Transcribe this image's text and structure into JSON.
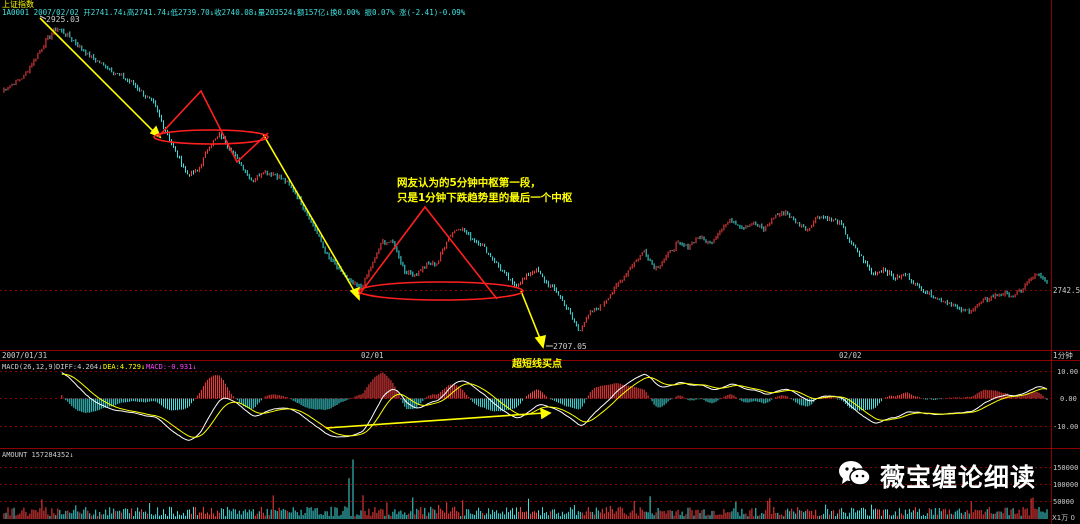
{
  "header": {
    "index_name": "上证指数",
    "info_line": "1A0001 2007/02/02 开2741.74↓高2741.74↓低2739.70↓收2740.08↓量203524↓额157亿↓换0.00% 振0.07% 涨(-2.41)-0.09%"
  },
  "price_panel": {
    "high_label": "2925.03",
    "low_label": "2707.05",
    "ref_label": "2742.5",
    "annotation_line1": "网友认为的5分钟中枢第一段，",
    "annotation_line2": "只是1分钟下跌趋势里的最后一个中枢",
    "dates": [
      "2007/01/31",
      "02/01",
      "02/02"
    ],
    "period": "1分钟"
  },
  "macd_panel": {
    "title": "超短线买点",
    "legend_params": "MACD(26,12,9)",
    "legend_diff": "DIFF:4.264↓",
    "legend_dea": "DEA:4.729↓",
    "legend_macd": "MACD:-0.931↓",
    "yticks": [
      "10.00",
      "0.00",
      "-10.00"
    ]
  },
  "volume_panel": {
    "legend": "AMOUNT 157284352↓",
    "yticks": [
      "150000",
      "100000",
      "50000"
    ],
    "unit": "X1万 0"
  },
  "watermark": {
    "icon": "wechat-icon",
    "text": "薇宝缠论细读"
  },
  "colors": {
    "up": "#ff4040",
    "down": "#40e0e0",
    "arrow": "#ffff00",
    "ellipse": "#ff2020",
    "annotation": "#ffff00",
    "grid": "#8b0000"
  },
  "chart_data": [
    {
      "type": "line",
      "name": "price",
      "x_labels": [
        "2007/01/31",
        "02/01",
        "02/02"
      ],
      "y_range": [
        2695,
        2935
      ],
      "y_marks": [
        2925.03,
        2707.05,
        2742.5
      ],
      "keypoints": [
        [
          0,
          2880
        ],
        [
          2,
          2890
        ],
        [
          4,
          2915
        ],
        [
          5,
          2925.03
        ],
        [
          6,
          2920
        ],
        [
          8,
          2905
        ],
        [
          10,
          2895
        ],
        [
          12,
          2885
        ],
        [
          14,
          2870
        ],
        [
          15,
          2852
        ],
        [
          16,
          2835
        ],
        [
          17,
          2820
        ],
        [
          18,
          2822
        ],
        [
          19,
          2840
        ],
        [
          20,
          2848
        ],
        [
          21,
          2838
        ],
        [
          22,
          2826
        ],
        [
          23,
          2815
        ],
        [
          24,
          2822
        ],
        [
          25,
          2820
        ],
        [
          26,
          2815
        ],
        [
          27,
          2806
        ],
        [
          28,
          2792
        ],
        [
          30,
          2760
        ],
        [
          32,
          2742
        ],
        [
          33,
          2738
        ],
        [
          34,
          2755
        ],
        [
          35,
          2772
        ],
        [
          36,
          2770
        ],
        [
          37,
          2750
        ],
        [
          38,
          2748
        ],
        [
          39,
          2755
        ],
        [
          40,
          2756
        ],
        [
          41,
          2775
        ],
        [
          42,
          2782
        ],
        [
          43,
          2775
        ],
        [
          44,
          2770
        ],
        [
          45,
          2760
        ],
        [
          46,
          2750
        ],
        [
          47,
          2740
        ],
        [
          48,
          2745
        ],
        [
          49,
          2752
        ],
        [
          50,
          2742
        ],
        [
          51,
          2735
        ],
        [
          52,
          2722
        ],
        [
          53,
          2707.05
        ],
        [
          54,
          2720
        ],
        [
          55,
          2725
        ],
        [
          56,
          2735
        ],
        [
          57,
          2745
        ],
        [
          58,
          2756
        ],
        [
          59,
          2765
        ],
        [
          60,
          2752
        ],
        [
          61,
          2760
        ],
        [
          62,
          2770
        ],
        [
          63,
          2768
        ],
        [
          64,
          2775
        ],
        [
          65,
          2770
        ],
        [
          66,
          2780
        ],
        [
          67,
          2787
        ],
        [
          68,
          2782
        ],
        [
          69,
          2785
        ],
        [
          70,
          2780
        ],
        [
          71,
          2790
        ],
        [
          72,
          2793
        ],
        [
          73,
          2785
        ],
        [
          74,
          2780
        ],
        [
          75,
          2790
        ],
        [
          76,
          2788
        ],
        [
          77,
          2785
        ],
        [
          78,
          2770
        ],
        [
          79,
          2760
        ],
        [
          80,
          2748
        ],
        [
          81,
          2752
        ],
        [
          82,
          2745
        ],
        [
          83,
          2748
        ],
        [
          84,
          2740
        ],
        [
          85,
          2735
        ],
        [
          86,
          2730
        ],
        [
          87,
          2728
        ],
        [
          88,
          2722
        ],
        [
          89,
          2722
        ],
        [
          90,
          2728
        ],
        [
          91,
          2732
        ],
        [
          92,
          2734
        ],
        [
          93,
          2732
        ],
        [
          94,
          2740
        ],
        [
          95,
          2748
        ],
        [
          96,
          2742.5
        ]
      ]
    }
  ]
}
